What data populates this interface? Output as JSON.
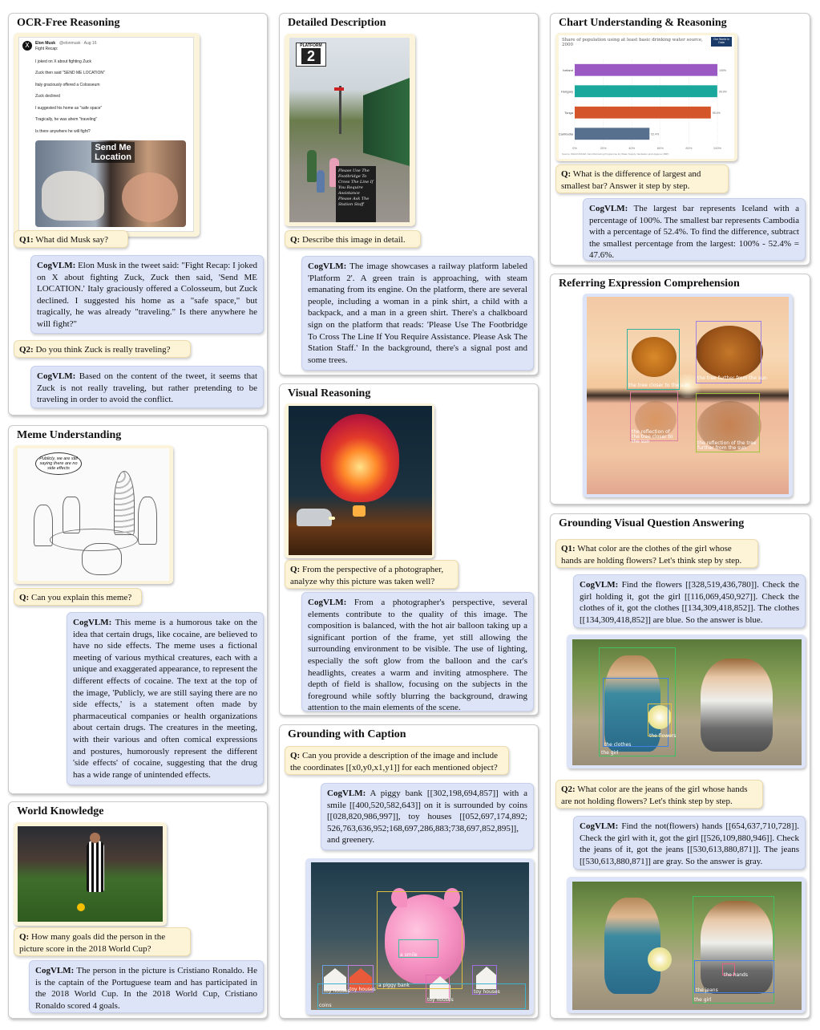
{
  "ocr": {
    "title": "OCR-Free Reasoning",
    "tweet": {
      "author": "Elon Musk",
      "handle": "@elonmusk · Aug 16",
      "lines": [
        "Fight Recap:",
        "I joked on X about fighting Zuck",
        "Zuck then said \"SEND ME LOCATION\"",
        "Italy graciously offered a Colosseum",
        "Zuck declined",
        "I suggested his home as \"safe space\"",
        "Tragically, he was ahem \"traveling\"",
        "Is there anywhere he will fight?"
      ],
      "meme_text": "Send Me Location"
    },
    "q1_label": "Q1:",
    "q1_text": "What did Musk say?",
    "a1_label": "CogVLM:",
    "a1_text": "Elon Musk in the tweet said: \"Fight Recap: I joked on X about fighting Zuck, Zuck then said, 'Send ME LOCATION.' Italy graciously offered a Colosseum, but Zuck declined. I suggested his home as a \"safe space,\" but tragically, he was already \"traveling.\" Is there anywhere he will fight?\"",
    "q2_label": "Q2:",
    "q2_text": "Do you think Zuck is really traveling?",
    "a2_label": "CogVLM:",
    "a2_text": "Based on the content of the tweet, it seems that Zuck is not really traveling, but rather pretending to be traveling in order to avoid the conflict."
  },
  "meme": {
    "title": "Meme Understanding",
    "bubble": "Publicly, we are still saying there are no side effects",
    "q_label": "Q:",
    "q_text": "Can you explain this meme?",
    "a_label": "CogVLM:",
    "a_text": "This meme is a humorous take on the idea that certain drugs, like cocaine, are believed to have no side effects. The meme uses a fictional meeting of various mythical creatures, each with a unique and exaggerated appearance, to represent the different effects of cocaine. The text at the top of the image, 'Publicly, we are still saying there are no side effects,' is a statement often made by pharmaceutical companies or health organizations about certain drugs. The creatures in the meeting, with their various and often comical expressions and postures, humorously represent the different 'side effects' of cocaine, suggesting that the drug has a wide range of unintended effects."
  },
  "world": {
    "title": "World Knowledge",
    "q_label": "Q:",
    "q_text": "How many goals did the person in the picture score in the 2018 World Cup?",
    "a_label": "CogVLM:",
    "a_text": "The person in the picture is Cristiano Ronaldo. He is the captain of the Portuguese team and has participated in the 2018 World Cup. In the 2018 World Cup, Cristiano Ronaldo scored 4 goals."
  },
  "detail": {
    "title": "Detailed Description",
    "sign_label": "PLATFORM",
    "sign_number": "2",
    "chalk_text": "Please Use The Footbridge To Cross The Line If You Require Assistance Please Ask The Station Staff",
    "q_label": "Q:",
    "q_text": "Describe this image in detail.",
    "a_label": "CogVLM:",
    "a_text": "The image showcases a railway platform labeled 'Platform 2'. A green train is approaching, with steam emanating from its engine. On the platform, there are several people, including a woman in a pink shirt, a child with a backpack, and a man in a green shirt. There's a chalkboard sign on the platform that reads: 'Please Use The Footbridge To Cross The Line If You Require Assistance. Please Ask The Station Staff.' In the background, there's a signal post and some trees."
  },
  "visual": {
    "title": "Visual Reasoning",
    "q_label": "Q:",
    "q_text": "From the perspective of a photographer, analyze why this picture was taken well?",
    "a_label": "CogVLM:",
    "a_text": "From a photographer's perspective, several elements contribute to the quality of this image. The composition is balanced, with the hot air balloon taking up a significant portion of the frame, yet still allowing the surrounding environment to be visible. The use of lighting, especially the soft glow from the balloon and the car's headlights, creates a warm and inviting atmosphere. The depth of field is shallow, focusing on the subjects in the foreground while softly blurring the background, drawing attention to the main elements of the scene."
  },
  "gcap": {
    "title": "Grounding with Caption",
    "q_label": "Q:",
    "q_text": "Can you provide a description of the image and include the coordinates [[x0,y0,x1,y1]] for each mentioned object?",
    "a_label": "CogVLM:",
    "a_text": "A piggy bank [[302,198,694,857]] with a smile [[400,520,582,643]] on it is surrounded by coins [[028,820,986,997]], toy houses [[052,697,174,892; 526,763,636,952;168,697,286,883;738,697,852,895]], and greenery.",
    "labels": {
      "smile": "a smile",
      "pig": "a piggy bank",
      "house": "toy houses",
      "coins": "coins"
    }
  },
  "chart": {
    "title": "Chart Understanding & Reasoning",
    "q_label": "Q:",
    "q_text": "What is the difference of largest and smallest bar? Answer it step by step.",
    "a_label": "CogVLM:",
    "a_text": "The largest bar represents Iceland with a percentage of 100%. The smallest bar represents Cambodia with a percentage of 52.4%. To find the difference, subtract the smallest percentage from the largest: 100% - 52.4% = 47.6%.",
    "chart_data": {
      "type": "bar",
      "title": "Share of population using at least basic drinking water source, 2000",
      "badge": "Our World in Data",
      "categories": [
        "Iceland",
        "Hungary",
        "Tonga",
        "Cambodia"
      ],
      "values": [
        100,
        99.9,
        95.4,
        52.4
      ],
      "value_labels": [
        "100%",
        "99.9%",
        "95.4%",
        "52.4%"
      ],
      "colors": [
        "#9b59c4",
        "#1aa79c",
        "#d4552a",
        "#56708d"
      ],
      "ticks": [
        "0%",
        "20%",
        "40%",
        "60%",
        "80%",
        "100%"
      ],
      "xlim": [
        0,
        100
      ],
      "source": "Source: WHO/UNICEF Joint Monitoring Programme for Water Supply, Sanitation and Hygiene (JMP)"
    }
  },
  "rec": {
    "title": "Referring Expression Comprehension",
    "labels": [
      "the tree closer to the sun",
      "the tree further from the sun",
      "the reflection of the tree closer to the sun",
      "the reflection of the tree further from the sun"
    ]
  },
  "gvqa": {
    "title": "Grounding Visual Question Answering",
    "q1_label": "Q1:",
    "q1_text": "What color are the clothes of the girl whose hands are holding flowers? Let's think step by step.",
    "a1_label": "CogVLM:",
    "a1_text": "Find the flowers [[328,519,436,780]]. Check the girl holding it, got the girl [[116,069,450,927]]. Check the clothes of it, got the clothes [[134,309,418,852]]. The clothes [[134,309,418,852]] are blue. So the answer is blue.",
    "q2_label": "Q2:",
    "q2_text": "What color are the jeans of the girl whose hands are not holding flowers? Let's think step by step.",
    "a2_label": "CogVLM:",
    "a2_text": "Find the not(flowers) hands [[654,637,710,728]]. Check the girl with it, got the girl [[526,109,880,946]]. Check the jeans of it, got the jeans [[530,613,880,871]]. The jeans [[530,613,880,871]] are gray. So the answer is gray.",
    "img1_labels": [
      "the flowers",
      "the clothes",
      "the girl"
    ],
    "img2_labels": [
      "the hands",
      "the jeans",
      "the girl"
    ]
  }
}
